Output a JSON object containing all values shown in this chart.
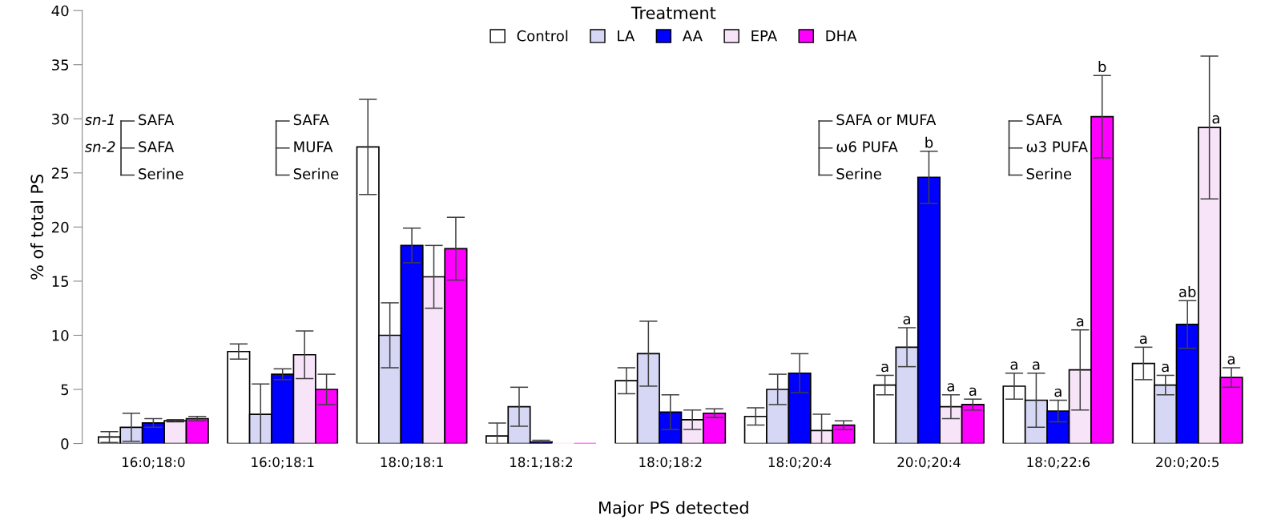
{
  "chart_data": {
    "type": "bar",
    "xlabel": "Major PS detected",
    "ylabel": "% of total PS",
    "legend_title": "Treatment",
    "legend": "top",
    "categories": [
      "16:0;18:0",
      "16:0;18:1",
      "18:0;18:1",
      "18:1;18:2",
      "18:0;18:2",
      "18:0;20:4",
      "20:0;20:4",
      "18:0;22:6",
      "20:0;20:5"
    ],
    "ylim": [
      0,
      40
    ],
    "yticks": [
      0,
      5,
      10,
      15,
      20,
      25,
      30,
      35,
      40
    ],
    "grid": false,
    "series": [
      {
        "name": "Control",
        "color": "#ffffff",
        "values": [
          0.6,
          8.5,
          27.4,
          0.7,
          5.8,
          2.5,
          5.4,
          5.3,
          7.4
        ],
        "errors": [
          0.5,
          0.7,
          4.4,
          1.2,
          1.2,
          0.8,
          0.9,
          1.2,
          1.5
        ],
        "value_labels": [
          null,
          null,
          null,
          null,
          null,
          null,
          "a",
          "a",
          "a"
        ]
      },
      {
        "name": "LA",
        "color": "#d6d6f5",
        "values": [
          1.5,
          2.7,
          10.0,
          3.4,
          8.3,
          5.0,
          8.9,
          4.0,
          5.4
        ],
        "errors": [
          1.3,
          2.8,
          3.0,
          1.8,
          3.0,
          1.4,
          1.8,
          2.5,
          0.9
        ],
        "value_labels": [
          null,
          null,
          null,
          null,
          null,
          null,
          "a",
          "a",
          "a"
        ]
      },
      {
        "name": "AA",
        "color": "#0000ff",
        "values": [
          1.9,
          6.4,
          18.3,
          0.15,
          2.9,
          6.5,
          24.6,
          3.0,
          11.0
        ],
        "errors": [
          0.4,
          0.5,
          1.6,
          0.15,
          1.6,
          1.8,
          2.4,
          1.0,
          2.2
        ],
        "value_labels": [
          null,
          null,
          null,
          null,
          null,
          null,
          "b",
          "a",
          "ab"
        ]
      },
      {
        "name": "EPA",
        "color": "#f8e4f8",
        "values": [
          2.1,
          8.2,
          15.4,
          0,
          2.2,
          1.2,
          3.4,
          6.8,
          29.2
        ],
        "errors": [
          0.1,
          2.2,
          2.9,
          null,
          0.9,
          1.5,
          1.1,
          3.7,
          6.6
        ],
        "value_labels": [
          null,
          null,
          null,
          null,
          null,
          null,
          "a",
          "a",
          "a"
        ]
      },
      {
        "name": "DHA",
        "color": "#ff00ff",
        "values": [
          2.3,
          5.0,
          18.0,
          0,
          2.8,
          1.7,
          3.6,
          30.2,
          6.1
        ],
        "errors": [
          0.2,
          1.4,
          2.9,
          null,
          0.4,
          0.4,
          0.5,
          3.8,
          0.9
        ],
        "value_labels": [
          null,
          null,
          null,
          null,
          null,
          null,
          "a",
          "b",
          "a"
        ]
      }
    ],
    "annotations": [
      "sn-1",
      "sn-2",
      "SAFA",
      "SAFA",
      "Serine",
      "SAFA",
      "MUFA",
      "Serine",
      "SAFA or MUFA",
      "ω6 PUFA",
      "Serine",
      "SAFA",
      "ω3 PUFA",
      "Serine"
    ]
  }
}
